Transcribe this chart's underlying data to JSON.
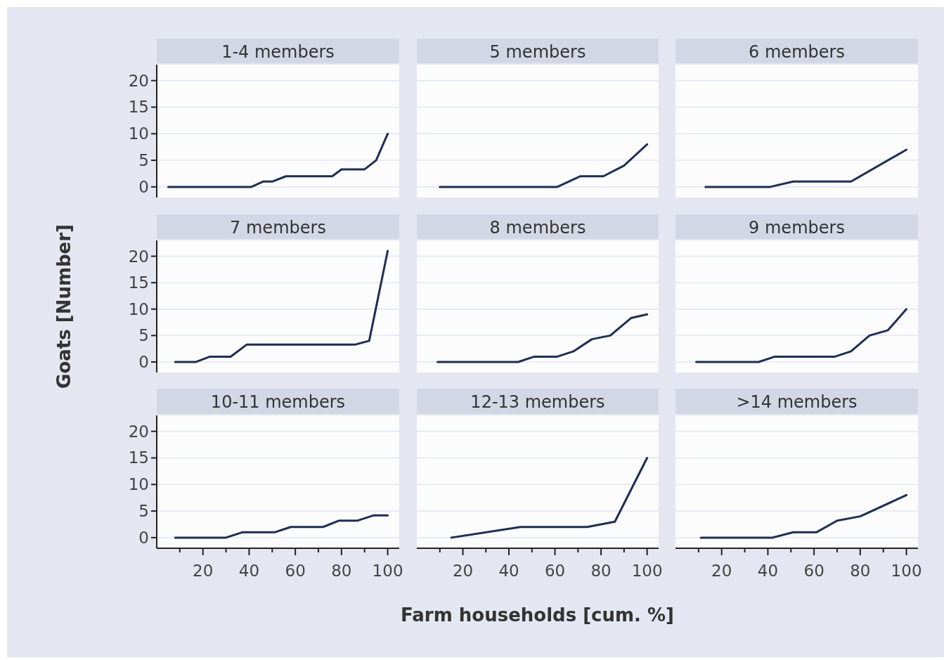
{
  "chart_data": [
    {
      "type": "line",
      "title": "1-4 members",
      "tick_labels": "y",
      "grid": "y",
      "xlim": [
        0,
        105
      ],
      "ylim": [
        -2,
        23
      ],
      "yticks": [
        0,
        5,
        10,
        15,
        20
      ],
      "series": [
        {
          "color": "#1f2d55",
          "x": [
            5,
            41,
            46,
            50,
            56,
            76,
            80,
            90,
            95,
            100
          ],
          "values": [
            0,
            0,
            1,
            1,
            2,
            2,
            3.3,
            3.3,
            5,
            10
          ]
        }
      ]
    },
    {
      "type": "line",
      "title": "5 members",
      "tick_labels": false,
      "grid": "y",
      "xlim": [
        0,
        105
      ],
      "ylim": [
        -2,
        23
      ],
      "yticks": [
        0,
        5,
        10,
        15,
        20
      ],
      "series": [
        {
          "color": "#1f2d55",
          "x": [
            10,
            61,
            71,
            81,
            90,
            95,
            100
          ],
          "values": [
            0,
            0,
            2,
            2,
            4,
            6,
            8
          ]
        }
      ]
    },
    {
      "type": "line",
      "title": "6 members",
      "tick_labels": false,
      "grid": "y",
      "xlim": [
        0,
        105
      ],
      "ylim": [
        -2,
        23
      ],
      "yticks": [
        0,
        5,
        10,
        15,
        20
      ],
      "series": [
        {
          "color": "#1f2d55",
          "x": [
            13,
            41,
            51,
            76,
            100
          ],
          "values": [
            0,
            0,
            1,
            1,
            7
          ]
        }
      ]
    },
    {
      "type": "line",
      "title": "7 members",
      "ylabel": "Goats [Number]",
      "tick_labels": "y",
      "grid": "y",
      "xlim": [
        0,
        105
      ],
      "ylim": [
        -2,
        23
      ],
      "yticks": [
        0,
        5,
        10,
        15,
        20
      ],
      "series": [
        {
          "color": "#1f2d55",
          "x": [
            8,
            17,
            23,
            32,
            39,
            86,
            92,
            100
          ],
          "values": [
            0,
            0,
            1,
            1,
            3.3,
            3.3,
            4,
            21
          ]
        }
      ]
    },
    {
      "type": "line",
      "title": "8 members",
      "tick_labels": false,
      "grid": "y",
      "xlim": [
        0,
        105
      ],
      "ylim": [
        -2,
        23
      ],
      "yticks": [
        0,
        5,
        10,
        15,
        20
      ],
      "series": [
        {
          "color": "#1f2d55",
          "x": [
            9,
            44,
            51,
            61,
            68,
            76,
            84,
            93,
            100
          ],
          "values": [
            0,
            0,
            1,
            1,
            2,
            4.3,
            5,
            8.3,
            9
          ]
        }
      ]
    },
    {
      "type": "line",
      "title": "9 members",
      "tick_labels": false,
      "grid": "y",
      "xlim": [
        0,
        105
      ],
      "ylim": [
        -2,
        23
      ],
      "yticks": [
        0,
        5,
        10,
        15,
        20
      ],
      "series": [
        {
          "color": "#1f2d55",
          "x": [
            9,
            36,
            43,
            69,
            76,
            84,
            92,
            100
          ],
          "values": [
            0,
            0,
            1,
            1,
            2,
            5,
            6,
            10
          ]
        }
      ]
    },
    {
      "type": "line",
      "title": "10-11 members",
      "grid": "y",
      "xlim": [
        0,
        105
      ],
      "ylim": [
        -2,
        23
      ],
      "yticks": [
        0,
        5,
        10,
        15,
        20
      ],
      "xticks": [
        {
          "value": 10,
          "label": null
        },
        20,
        {
          "value": 30,
          "label": null
        },
        40,
        {
          "value": 50,
          "label": null
        },
        60,
        {
          "value": 70,
          "label": null
        },
        80,
        {
          "value": 90,
          "label": null
        },
        100
      ],
      "series": [
        {
          "color": "#1f2d55",
          "x": [
            8,
            30,
            37,
            51,
            58,
            72,
            79,
            87,
            94,
            100
          ],
          "values": [
            0,
            0,
            1,
            1,
            2,
            2,
            3.2,
            3.2,
            4.2,
            4.2
          ]
        }
      ]
    },
    {
      "type": "line",
      "title": "12-13 members",
      "xlabel": "Farm households [cum. %]",
      "tick_labels": "x",
      "grid": "y",
      "xlim": [
        0,
        105
      ],
      "ylim": [
        -2,
        23
      ],
      "yticks": [
        0,
        5,
        10,
        15,
        20
      ],
      "xticks": [
        {
          "value": 10,
          "label": null
        },
        20,
        {
          "value": 30,
          "label": null
        },
        40,
        {
          "value": 50,
          "label": null
        },
        60,
        {
          "value": 70,
          "label": null
        },
        80,
        {
          "value": 90,
          "label": null
        },
        100
      ],
      "series": [
        {
          "color": "#1f2d55",
          "x": [
            15,
            45,
            74,
            86,
            100
          ],
          "values": [
            0,
            2,
            2,
            3,
            15
          ]
        }
      ]
    },
    {
      "type": "line",
      "title": ">14 members",
      "tick_labels": "x",
      "grid": "y",
      "xlim": [
        0,
        105
      ],
      "ylim": [
        -2,
        23
      ],
      "yticks": [
        0,
        5,
        10,
        15,
        20
      ],
      "xticks": [
        {
          "value": 10,
          "label": null
        },
        20,
        {
          "value": 30,
          "label": null
        },
        40,
        {
          "value": 50,
          "label": null
        },
        60,
        {
          "value": 70,
          "label": null
        },
        80,
        {
          "value": 90,
          "label": null
        },
        100
      ],
      "series": [
        {
          "color": "#1f2d55",
          "x": [
            11,
            42,
            51,
            61,
            70,
            80,
            100
          ],
          "values": [
            0,
            0,
            1,
            1,
            3.2,
            4,
            8
          ]
        }
      ]
    }
  ]
}
